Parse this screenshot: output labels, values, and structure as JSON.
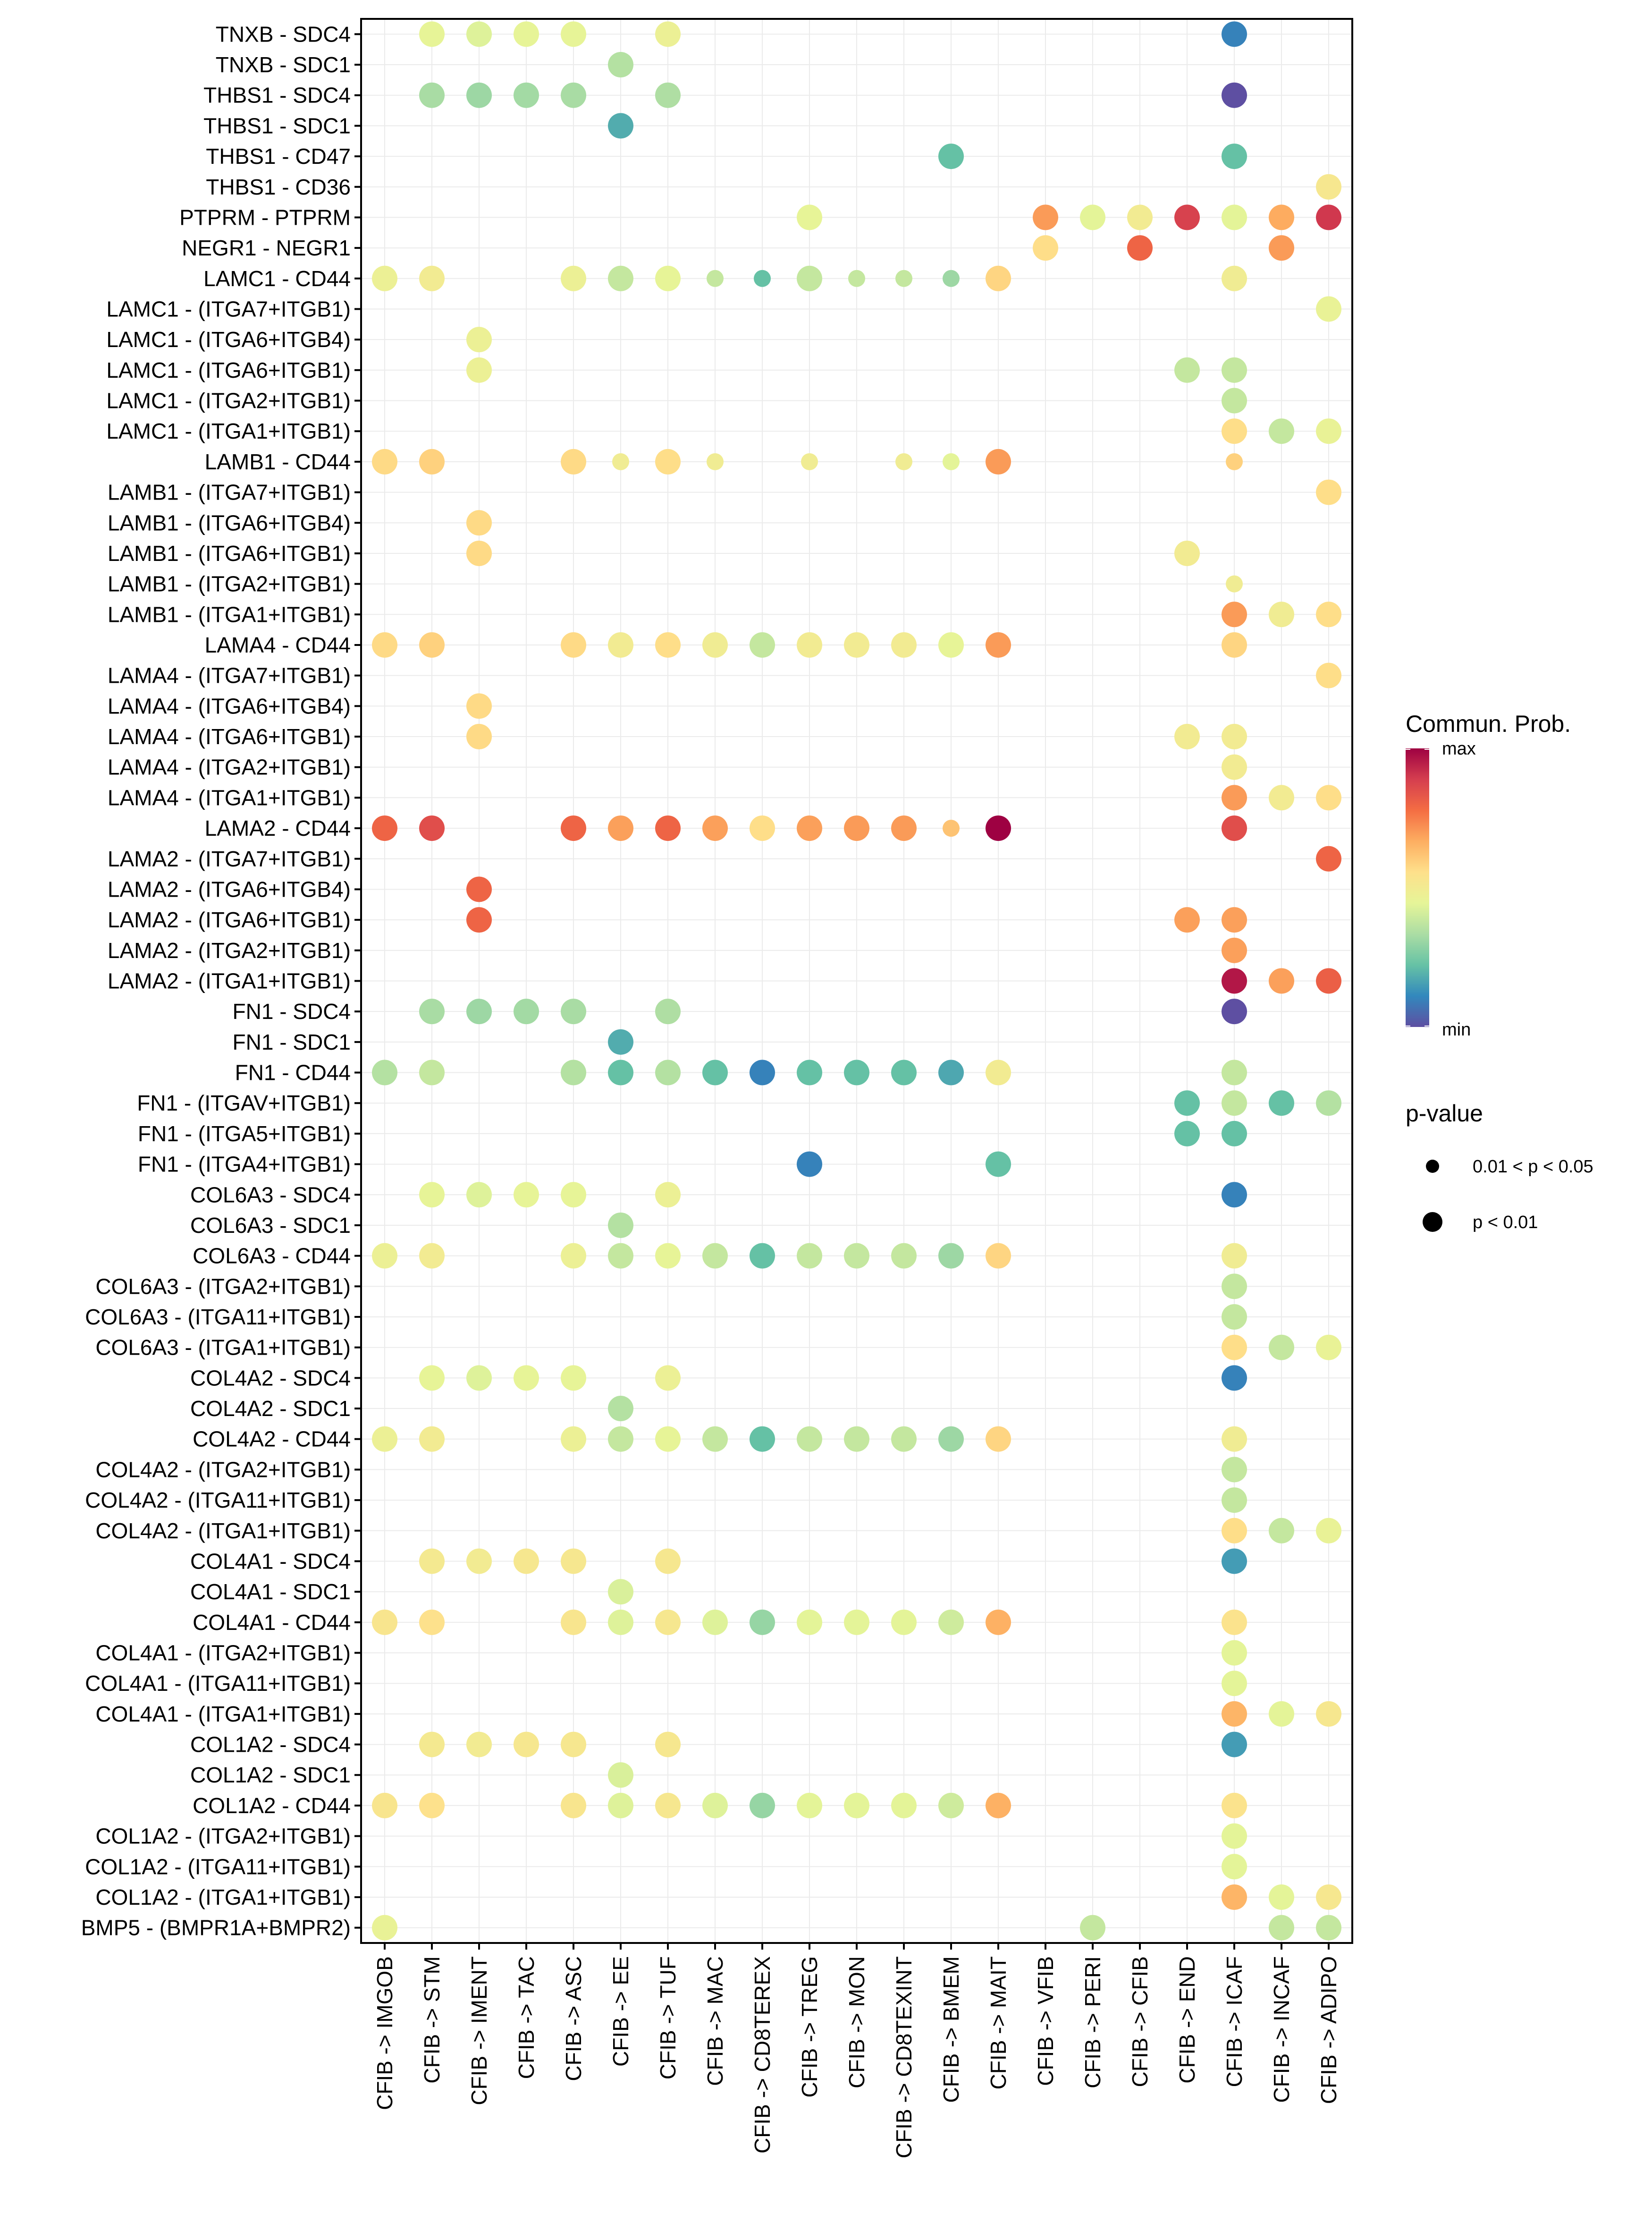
{
  "chart_data": {
    "type": "scatter",
    "subtype": "dot-plot",
    "title": "",
    "xlabel": "",
    "ylabel": "",
    "grid": true,
    "legend_position": "right",
    "x_categories": [
      "CFIB -> IMGOB",
      "CFIB -> STM",
      "CFIB -> IMENT",
      "CFIB -> TAC",
      "CFIB -> ASC",
      "CFIB -> EE",
      "CFIB -> TUF",
      "CFIB -> MAC",
      "CFIB -> CD8TEREX",
      "CFIB -> TREG",
      "CFIB -> MON",
      "CFIB -> CD8TEXINT",
      "CFIB -> BMEM",
      "CFIB -> MAIT",
      "CFIB -> VFIB",
      "CFIB -> PERI",
      "CFIB -> CFIB",
      "CFIB -> END",
      "CFIB -> ICAF",
      "CFIB -> INCAF",
      "CFIB -> ADIPO"
    ],
    "y_categories": [
      "TNXB - SDC4",
      "TNXB - SDC1",
      "THBS1 - SDC4",
      "THBS1 - SDC1",
      "THBS1 - CD47",
      "THBS1 - CD36",
      "PTPRM - PTPRM",
      "NEGR1 - NEGR1",
      "LAMC1 - CD44",
      "LAMC1 - (ITGA7+ITGB1)",
      "LAMC1 - (ITGA6+ITGB4)",
      "LAMC1 - (ITGA6+ITGB1)",
      "LAMC1 - (ITGA2+ITGB1)",
      "LAMC1 - (ITGA1+ITGB1)",
      "LAMB1 - CD44",
      "LAMB1 - (ITGA7+ITGB1)",
      "LAMB1 - (ITGA6+ITGB4)",
      "LAMB1 - (ITGA6+ITGB1)",
      "LAMB1 - (ITGA2+ITGB1)",
      "LAMB1 - (ITGA1+ITGB1)",
      "LAMA4 - CD44",
      "LAMA4 - (ITGA7+ITGB1)",
      "LAMA4 - (ITGA6+ITGB4)",
      "LAMA4 - (ITGA6+ITGB1)",
      "LAMA4 - (ITGA2+ITGB1)",
      "LAMA4 - (ITGA1+ITGB1)",
      "LAMA2 - CD44",
      "LAMA2 - (ITGA7+ITGB1)",
      "LAMA2 - (ITGA6+ITGB4)",
      "LAMA2 - (ITGA6+ITGB1)",
      "LAMA2 - (ITGA2+ITGB1)",
      "LAMA2 - (ITGA1+ITGB1)",
      "FN1 - SDC4",
      "FN1 - SDC1",
      "FN1 - CD44",
      "FN1 - (ITGAV+ITGB1)",
      "FN1 - (ITGA5+ITGB1)",
      "FN1 - (ITGA4+ITGB1)",
      "COL6A3 - SDC4",
      "COL6A3 - SDC1",
      "COL6A3 - CD44",
      "COL6A3 - (ITGA2+ITGB1)",
      "COL6A3 - (ITGA11+ITGB1)",
      "COL6A3 - (ITGA1+ITGB1)",
      "COL4A2 - SDC4",
      "COL4A2 - SDC1",
      "COL4A2 - CD44",
      "COL4A2 - (ITGA2+ITGB1)",
      "COL4A2 - (ITGA11+ITGB1)",
      "COL4A2 - (ITGA1+ITGB1)",
      "COL4A1 - SDC4",
      "COL4A1 - SDC1",
      "COL4A1 - CD44",
      "COL4A1 - (ITGA2+ITGB1)",
      "COL4A1 - (ITGA11+ITGB1)",
      "COL4A1 - (ITGA1+ITGB1)",
      "COL1A2 - SDC4",
      "COL1A2 - SDC1",
      "COL1A2 - CD44",
      "COL1A2 - (ITGA2+ITGB1)",
      "COL1A2 - (ITGA11+ITGB1)",
      "COL1A2 - (ITGA1+ITGB1)",
      "BMP5 - (BMPR1A+BMPR2)"
    ],
    "point_fields": [
      "row",
      "col",
      "prob_scaled",
      "pval_lt_0.01"
    ],
    "points": [
      [
        0,
        1,
        0.45,
        1
      ],
      [
        0,
        2,
        0.43,
        1
      ],
      [
        0,
        3,
        0.45,
        1
      ],
      [
        0,
        4,
        0.45,
        1
      ],
      [
        0,
        6,
        0.47,
        1
      ],
      [
        0,
        18,
        0.1,
        1
      ],
      [
        1,
        5,
        0.35,
        1
      ],
      [
        2,
        1,
        0.33,
        1
      ],
      [
        2,
        2,
        0.31,
        1
      ],
      [
        2,
        3,
        0.32,
        1
      ],
      [
        2,
        4,
        0.33,
        1
      ],
      [
        2,
        6,
        0.34,
        1
      ],
      [
        2,
        18,
        0.0,
        1
      ],
      [
        3,
        5,
        0.18,
        1
      ],
      [
        4,
        12,
        0.22,
        1
      ],
      [
        4,
        18,
        0.22,
        1
      ],
      [
        5,
        20,
        0.52,
        1
      ],
      [
        6,
        9,
        0.45,
        1
      ],
      [
        6,
        14,
        0.7,
        1
      ],
      [
        6,
        15,
        0.44,
        1
      ],
      [
        6,
        16,
        0.5,
        1
      ],
      [
        6,
        17,
        0.88,
        1
      ],
      [
        6,
        18,
        0.44,
        1
      ],
      [
        6,
        19,
        0.67,
        1
      ],
      [
        6,
        20,
        0.9,
        1
      ],
      [
        7,
        14,
        0.56,
        1
      ],
      [
        7,
        16,
        0.8,
        1
      ],
      [
        7,
        19,
        0.7,
        1
      ],
      [
        8,
        0,
        0.47,
        1
      ],
      [
        8,
        1,
        0.5,
        1
      ],
      [
        8,
        4,
        0.47,
        1
      ],
      [
        8,
        5,
        0.38,
        1
      ],
      [
        8,
        6,
        0.45,
        1
      ],
      [
        8,
        7,
        0.38,
        0
      ],
      [
        8,
        8,
        0.22,
        0
      ],
      [
        8,
        9,
        0.38,
        1
      ],
      [
        8,
        10,
        0.38,
        0
      ],
      [
        8,
        11,
        0.38,
        0
      ],
      [
        8,
        12,
        0.31,
        0
      ],
      [
        8,
        13,
        0.58,
        1
      ],
      [
        8,
        18,
        0.49,
        1
      ],
      [
        9,
        20,
        0.46,
        1
      ],
      [
        10,
        2,
        0.47,
        1
      ],
      [
        11,
        2,
        0.47,
        1
      ],
      [
        11,
        17,
        0.38,
        1
      ],
      [
        11,
        18,
        0.38,
        1
      ],
      [
        12,
        18,
        0.38,
        1
      ],
      [
        13,
        18,
        0.56,
        1
      ],
      [
        13,
        19,
        0.38,
        1
      ],
      [
        13,
        20,
        0.46,
        1
      ],
      [
        14,
        0,
        0.57,
        1
      ],
      [
        14,
        1,
        0.59,
        1
      ],
      [
        14,
        4,
        0.57,
        1
      ],
      [
        14,
        5,
        0.49,
        0
      ],
      [
        14,
        6,
        0.56,
        1
      ],
      [
        14,
        7,
        0.49,
        0
      ],
      [
        14,
        9,
        0.49,
        0
      ],
      [
        14,
        11,
        0.49,
        0
      ],
      [
        14,
        12,
        0.44,
        0
      ],
      [
        14,
        13,
        0.7,
        1
      ],
      [
        14,
        18,
        0.59,
        0
      ],
      [
        15,
        20,
        0.56,
        1
      ],
      [
        16,
        2,
        0.57,
        1
      ],
      [
        17,
        2,
        0.57,
        1
      ],
      [
        17,
        17,
        0.5,
        1
      ],
      [
        18,
        18,
        0.49,
        0
      ],
      [
        19,
        18,
        0.7,
        1
      ],
      [
        19,
        19,
        0.49,
        1
      ],
      [
        19,
        20,
        0.56,
        1
      ],
      [
        20,
        0,
        0.57,
        1
      ],
      [
        20,
        1,
        0.59,
        1
      ],
      [
        20,
        4,
        0.57,
        1
      ],
      [
        20,
        5,
        0.5,
        1
      ],
      [
        20,
        6,
        0.56,
        1
      ],
      [
        20,
        7,
        0.49,
        1
      ],
      [
        20,
        8,
        0.38,
        1
      ],
      [
        20,
        9,
        0.5,
        1
      ],
      [
        20,
        10,
        0.5,
        1
      ],
      [
        20,
        11,
        0.5,
        1
      ],
      [
        20,
        12,
        0.45,
        1
      ],
      [
        20,
        13,
        0.7,
        1
      ],
      [
        20,
        18,
        0.58,
        1
      ],
      [
        21,
        20,
        0.56,
        1
      ],
      [
        22,
        2,
        0.57,
        1
      ],
      [
        23,
        2,
        0.57,
        1
      ],
      [
        23,
        17,
        0.5,
        1
      ],
      [
        23,
        18,
        0.5,
        1
      ],
      [
        24,
        18,
        0.5,
        1
      ],
      [
        25,
        18,
        0.7,
        1
      ],
      [
        25,
        19,
        0.5,
        1
      ],
      [
        25,
        20,
        0.56,
        1
      ],
      [
        26,
        0,
        0.8,
        1
      ],
      [
        26,
        1,
        0.85,
        1
      ],
      [
        26,
        4,
        0.8,
        1
      ],
      [
        26,
        5,
        0.69,
        1
      ],
      [
        26,
        6,
        0.8,
        1
      ],
      [
        26,
        7,
        0.69,
        1
      ],
      [
        26,
        8,
        0.56,
        1
      ],
      [
        26,
        9,
        0.69,
        1
      ],
      [
        26,
        10,
        0.7,
        1
      ],
      [
        26,
        11,
        0.7,
        1
      ],
      [
        26,
        12,
        0.62,
        0
      ],
      [
        26,
        13,
        1.0,
        1
      ],
      [
        26,
        18,
        0.85,
        1
      ],
      [
        27,
        20,
        0.8,
        1
      ],
      [
        28,
        2,
        0.8,
        1
      ],
      [
        29,
        2,
        0.8,
        1
      ],
      [
        29,
        17,
        0.69,
        1
      ],
      [
        29,
        18,
        0.69,
        1
      ],
      [
        30,
        18,
        0.69,
        1
      ],
      [
        31,
        18,
        0.96,
        1
      ],
      [
        31,
        19,
        0.69,
        1
      ],
      [
        31,
        20,
        0.81,
        1
      ],
      [
        32,
        1,
        0.33,
        1
      ],
      [
        32,
        2,
        0.31,
        1
      ],
      [
        32,
        3,
        0.32,
        1
      ],
      [
        32,
        4,
        0.33,
        1
      ],
      [
        32,
        6,
        0.34,
        1
      ],
      [
        32,
        18,
        0.0,
        1
      ],
      [
        33,
        5,
        0.18,
        1
      ],
      [
        34,
        0,
        0.35,
        1
      ],
      [
        34,
        1,
        0.38,
        1
      ],
      [
        34,
        4,
        0.35,
        1
      ],
      [
        34,
        5,
        0.22,
        1
      ],
      [
        34,
        6,
        0.35,
        1
      ],
      [
        34,
        7,
        0.22,
        1
      ],
      [
        34,
        8,
        0.1,
        1
      ],
      [
        34,
        9,
        0.22,
        1
      ],
      [
        34,
        10,
        0.22,
        1
      ],
      [
        34,
        11,
        0.22,
        1
      ],
      [
        34,
        12,
        0.17,
        1
      ],
      [
        34,
        13,
        0.5,
        1
      ],
      [
        34,
        18,
        0.38,
        1
      ],
      [
        35,
        17,
        0.22,
        1
      ],
      [
        35,
        18,
        0.38,
        1
      ],
      [
        35,
        19,
        0.22,
        1
      ],
      [
        35,
        20,
        0.35,
        1
      ],
      [
        36,
        17,
        0.22,
        1
      ],
      [
        36,
        18,
        0.22,
        1
      ],
      [
        37,
        9,
        0.1,
        1
      ],
      [
        37,
        13,
        0.22,
        1
      ],
      [
        38,
        1,
        0.45,
        1
      ],
      [
        38,
        2,
        0.43,
        1
      ],
      [
        38,
        3,
        0.45,
        1
      ],
      [
        38,
        4,
        0.45,
        1
      ],
      [
        38,
        6,
        0.47,
        1
      ],
      [
        38,
        18,
        0.1,
        1
      ],
      [
        39,
        5,
        0.35,
        1
      ],
      [
        40,
        0,
        0.47,
        1
      ],
      [
        40,
        1,
        0.5,
        1
      ],
      [
        40,
        4,
        0.47,
        1
      ],
      [
        40,
        5,
        0.38,
        1
      ],
      [
        40,
        6,
        0.45,
        1
      ],
      [
        40,
        7,
        0.38,
        1
      ],
      [
        40,
        8,
        0.22,
        1
      ],
      [
        40,
        9,
        0.38,
        1
      ],
      [
        40,
        10,
        0.38,
        1
      ],
      [
        40,
        11,
        0.38,
        1
      ],
      [
        40,
        12,
        0.31,
        1
      ],
      [
        40,
        13,
        0.58,
        1
      ],
      [
        40,
        18,
        0.49,
        1
      ],
      [
        41,
        18,
        0.38,
        1
      ],
      [
        42,
        18,
        0.38,
        1
      ],
      [
        43,
        18,
        0.56,
        1
      ],
      [
        43,
        19,
        0.38,
        1
      ],
      [
        43,
        20,
        0.46,
        1
      ],
      [
        44,
        1,
        0.45,
        1
      ],
      [
        44,
        2,
        0.43,
        1
      ],
      [
        44,
        3,
        0.45,
        1
      ],
      [
        44,
        4,
        0.45,
        1
      ],
      [
        44,
        6,
        0.47,
        1
      ],
      [
        44,
        18,
        0.1,
        1
      ],
      [
        45,
        5,
        0.35,
        1
      ],
      [
        46,
        0,
        0.47,
        1
      ],
      [
        46,
        1,
        0.5,
        1
      ],
      [
        46,
        4,
        0.47,
        1
      ],
      [
        46,
        5,
        0.38,
        1
      ],
      [
        46,
        6,
        0.45,
        1
      ],
      [
        46,
        7,
        0.38,
        1
      ],
      [
        46,
        8,
        0.22,
        1
      ],
      [
        46,
        9,
        0.38,
        1
      ],
      [
        46,
        10,
        0.38,
        1
      ],
      [
        46,
        11,
        0.38,
        1
      ],
      [
        46,
        12,
        0.31,
        1
      ],
      [
        46,
        13,
        0.58,
        1
      ],
      [
        46,
        18,
        0.49,
        1
      ],
      [
        47,
        18,
        0.38,
        1
      ],
      [
        48,
        18,
        0.38,
        1
      ],
      [
        49,
        18,
        0.56,
        1
      ],
      [
        49,
        19,
        0.38,
        1
      ],
      [
        49,
        20,
        0.46,
        1
      ],
      [
        50,
        1,
        0.51,
        1
      ],
      [
        50,
        2,
        0.5,
        1
      ],
      [
        50,
        3,
        0.52,
        1
      ],
      [
        50,
        4,
        0.52,
        1
      ],
      [
        50,
        6,
        0.52,
        1
      ],
      [
        50,
        18,
        0.15,
        1
      ],
      [
        51,
        5,
        0.42,
        1
      ],
      [
        52,
        0,
        0.53,
        1
      ],
      [
        52,
        1,
        0.55,
        1
      ],
      [
        52,
        4,
        0.53,
        1
      ],
      [
        52,
        5,
        0.43,
        1
      ],
      [
        52,
        6,
        0.52,
        1
      ],
      [
        52,
        7,
        0.43,
        1
      ],
      [
        52,
        8,
        0.3,
        1
      ],
      [
        52,
        9,
        0.44,
        1
      ],
      [
        52,
        10,
        0.44,
        1
      ],
      [
        52,
        11,
        0.44,
        1
      ],
      [
        52,
        12,
        0.4,
        1
      ],
      [
        52,
        13,
        0.66,
        1
      ],
      [
        52,
        18,
        0.54,
        1
      ],
      [
        53,
        18,
        0.44,
        1
      ],
      [
        54,
        18,
        0.44,
        1
      ],
      [
        55,
        18,
        0.65,
        1
      ],
      [
        55,
        19,
        0.44,
        1
      ],
      [
        55,
        20,
        0.52,
        1
      ],
      [
        56,
        1,
        0.51,
        1
      ],
      [
        56,
        2,
        0.5,
        1
      ],
      [
        56,
        3,
        0.52,
        1
      ],
      [
        56,
        4,
        0.52,
        1
      ],
      [
        56,
        6,
        0.52,
        1
      ],
      [
        56,
        18,
        0.15,
        1
      ],
      [
        57,
        5,
        0.42,
        1
      ],
      [
        58,
        0,
        0.53,
        1
      ],
      [
        58,
        1,
        0.55,
        1
      ],
      [
        58,
        4,
        0.53,
        1
      ],
      [
        58,
        5,
        0.43,
        1
      ],
      [
        58,
        6,
        0.52,
        1
      ],
      [
        58,
        7,
        0.43,
        1
      ],
      [
        58,
        8,
        0.3,
        1
      ],
      [
        58,
        9,
        0.44,
        1
      ],
      [
        58,
        10,
        0.44,
        1
      ],
      [
        58,
        11,
        0.44,
        1
      ],
      [
        58,
        12,
        0.4,
        1
      ],
      [
        58,
        13,
        0.66,
        1
      ],
      [
        58,
        18,
        0.54,
        1
      ],
      [
        59,
        18,
        0.44,
        1
      ],
      [
        60,
        18,
        0.44,
        1
      ],
      [
        61,
        18,
        0.65,
        1
      ],
      [
        61,
        19,
        0.44,
        1
      ],
      [
        61,
        20,
        0.52,
        1
      ],
      [
        62,
        0,
        0.46,
        1
      ],
      [
        62,
        15,
        0.38,
        1
      ],
      [
        62,
        19,
        0.38,
        1
      ],
      [
        62,
        20,
        0.38,
        1
      ]
    ],
    "color_scale": {
      "title": "Commun. Prob.",
      "max_label": "max",
      "min_label": "min",
      "palette": [
        "#5E4FA2",
        "#3288BD",
        "#66C2A5",
        "#ABDDA4",
        "#E6F598",
        "#FEE08B",
        "#FDAE61",
        "#F46D43",
        "#D53E4F",
        "#9E0142"
      ]
    },
    "size_legend": {
      "title": "p-value",
      "items": [
        {
          "label": "0.01 < p < 0.05",
          "size": "small"
        },
        {
          "label": "p < 0.01",
          "size": "large"
        }
      ]
    }
  }
}
